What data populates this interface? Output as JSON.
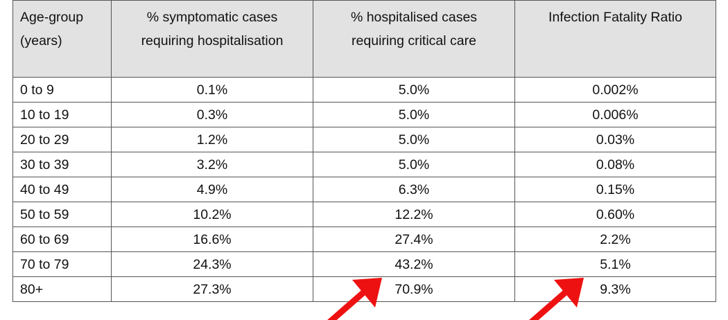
{
  "table": {
    "headers": [
      {
        "line1": "Age-group",
        "line2": "(years)"
      },
      {
        "line1": "% symptomatic cases",
        "line2": "requiring hospitalisation"
      },
      {
        "line1": "% hospitalised cases",
        "line2": "requiring critical care"
      },
      {
        "line1": "Infection Fatality Ratio",
        "line2": ""
      }
    ],
    "rows": [
      [
        "0 to 9",
        "0.1%",
        "5.0%",
        "0.002%"
      ],
      [
        "10 to 19",
        "0.3%",
        "5.0%",
        "0.006%"
      ],
      [
        "20 to 29",
        "1.2%",
        "5.0%",
        "0.03%"
      ],
      [
        "30 to 39",
        "3.2%",
        "5.0%",
        "0.08%"
      ],
      [
        "40 to 49",
        "4.9%",
        "6.3%",
        "0.15%"
      ],
      [
        "50 to 59",
        "10.2%",
        "12.2%",
        "0.60%"
      ],
      [
        "60 to 69",
        "16.6%",
        "27.4%",
        "2.2%"
      ],
      [
        "70 to 79",
        "24.3%",
        "43.2%",
        "5.1%"
      ],
      [
        "80+",
        "27.3%",
        "70.9%",
        "9.3%"
      ]
    ]
  },
  "annotations": {
    "arrow_color": "#ee1111",
    "arrows": [
      {
        "points_to": "80+ % hospitalised cases requiring critical care"
      },
      {
        "points_to": "80+ Infection Fatality Ratio"
      }
    ]
  }
}
